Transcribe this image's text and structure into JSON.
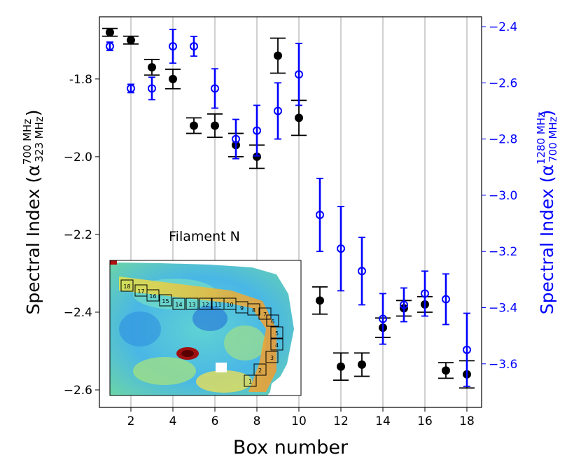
{
  "chart_data": {
    "type": "scatter",
    "xlabel": "Box number",
    "ylabel_left": "Spectral Index (α",
    "ylabel_left_sup": "700 MHz",
    "ylabel_left_sub": "323 MHz",
    "ylabel_right": "Spectral Index (α",
    "ylabel_right_sup": "1280 MHz",
    "ylabel_right_sub": "700 MHz",
    "xlim": [
      0.5,
      18.7
    ],
    "ylim_left": [
      -2.645,
      -1.64
    ],
    "ylim_right": [
      -3.755,
      -2.365
    ],
    "xticks": [
      2,
      4,
      6,
      8,
      10,
      12,
      14,
      16,
      18
    ],
    "yticks_left": [
      -1.8,
      -2.0,
      -2.2,
      -2.4,
      -2.6
    ],
    "yticks_left_labels": [
      "-1.8",
      "−2.0",
      "−2.2",
      "−2.4",
      "−2.6"
    ],
    "yticks_right": [
      -2.4,
      -2.6,
      -2.8,
      -3.0,
      -3.2,
      -3.4,
      -3.6
    ],
    "yticks_right_labels": [
      "−2.4",
      "−2.6",
      "−2.8",
      "−3.0",
      "−3.2",
      "−3.4",
      "−3.6"
    ],
    "vertical_gridlines": [
      2,
      4,
      6,
      8,
      10,
      12,
      14,
      16,
      18
    ],
    "series": [
      {
        "name": "alpha 323-700 MHz",
        "axis": "left",
        "color": "#000000",
        "marker": "filled-circle",
        "x": [
          1,
          2,
          3,
          4,
          5,
          6,
          7,
          8,
          9,
          10,
          11,
          12,
          13,
          14,
          15,
          16,
          17,
          18
        ],
        "y": [
          -1.68,
          -1.7,
          -1.77,
          -1.8,
          -1.92,
          -1.92,
          -1.97,
          -2.0,
          -1.74,
          -1.9,
          -2.37,
          -2.54,
          -2.535,
          -2.44,
          -2.39,
          -2.38,
          -2.55,
          -2.56
        ],
        "err": [
          0.01,
          0.01,
          0.02,
          0.025,
          0.02,
          0.03,
          0.03,
          0.03,
          0.045,
          0.045,
          0.035,
          0.035,
          0.03,
          0.025,
          0.02,
          0.02,
          0.02,
          0.035
        ]
      },
      {
        "name": "alpha 700-1280 MHz",
        "axis": "right",
        "color": "#0000ff",
        "marker": "open-circle",
        "x": [
          1,
          2,
          3,
          4,
          5,
          6,
          7,
          8,
          9,
          10,
          11,
          12,
          13,
          14,
          15,
          16,
          17,
          18
        ],
        "y": [
          -2.47,
          -2.62,
          -2.62,
          -2.47,
          -2.47,
          -2.62,
          -2.8,
          -2.77,
          -2.7,
          -2.57,
          -3.07,
          -3.19,
          -3.27,
          -3.44,
          -3.39,
          -3.35,
          -3.37,
          -3.55
        ],
        "err": [
          0.015,
          0.015,
          0.04,
          0.06,
          0.035,
          0.07,
          0.07,
          0.09,
          0.1,
          0.11,
          0.13,
          0.15,
          0.12,
          0.09,
          0.06,
          0.08,
          0.09,
          0.13
        ]
      }
    ],
    "inset": {
      "title": "Filament N",
      "box_labels": [
        "1",
        "2",
        "3",
        "4",
        "5",
        "6",
        "7",
        "8",
        "9",
        "10",
        "11",
        "12",
        "13",
        "14",
        "15",
        "16",
        "17",
        "18"
      ]
    }
  }
}
